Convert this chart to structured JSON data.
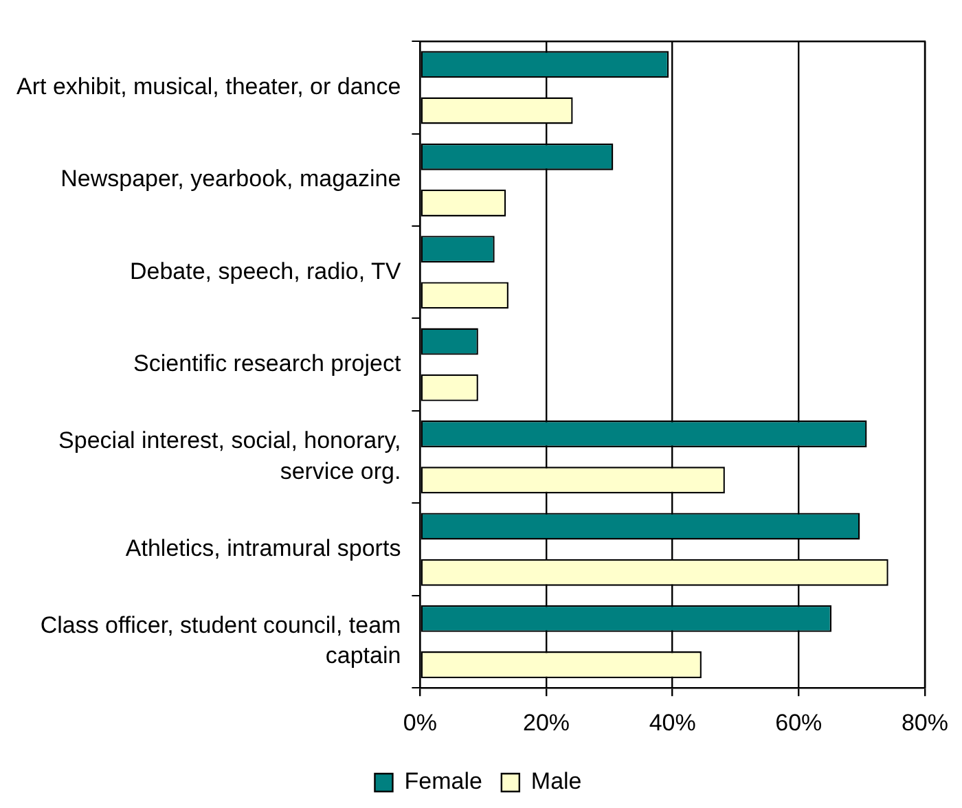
{
  "chart_data": {
    "type": "bar",
    "orientation": "horizontal",
    "categories": [
      "Art exhibit, musical, theater, or dance",
      "Newspaper, yearbook, magazine",
      "Debate, speech, radio, TV",
      "Scientific research project",
      "Special interest, social, honorary, service org.",
      "Athletics, intramural sports",
      "Class officer, student council, team captain"
    ],
    "series": [
      {
        "name": "Female",
        "color": "#008080",
        "values": [
          39.4,
          30.6,
          11.8,
          9.2,
          70.8,
          69.7,
          65.2
        ]
      },
      {
        "name": "Male",
        "color": "#ffffcc",
        "values": [
          24.2,
          13.6,
          14.0,
          9.2,
          48.3,
          74.2,
          44.6
        ]
      }
    ],
    "xlim": [
      0,
      80
    ],
    "xticks": [
      {
        "value": 0,
        "label": "0%"
      },
      {
        "value": 20,
        "label": "20%"
      },
      {
        "value": 40,
        "label": "40%"
      },
      {
        "value": 60,
        "label": "60%"
      },
      {
        "value": 80,
        "label": "80%"
      }
    ],
    "grid": "x",
    "legend": "bottom"
  }
}
